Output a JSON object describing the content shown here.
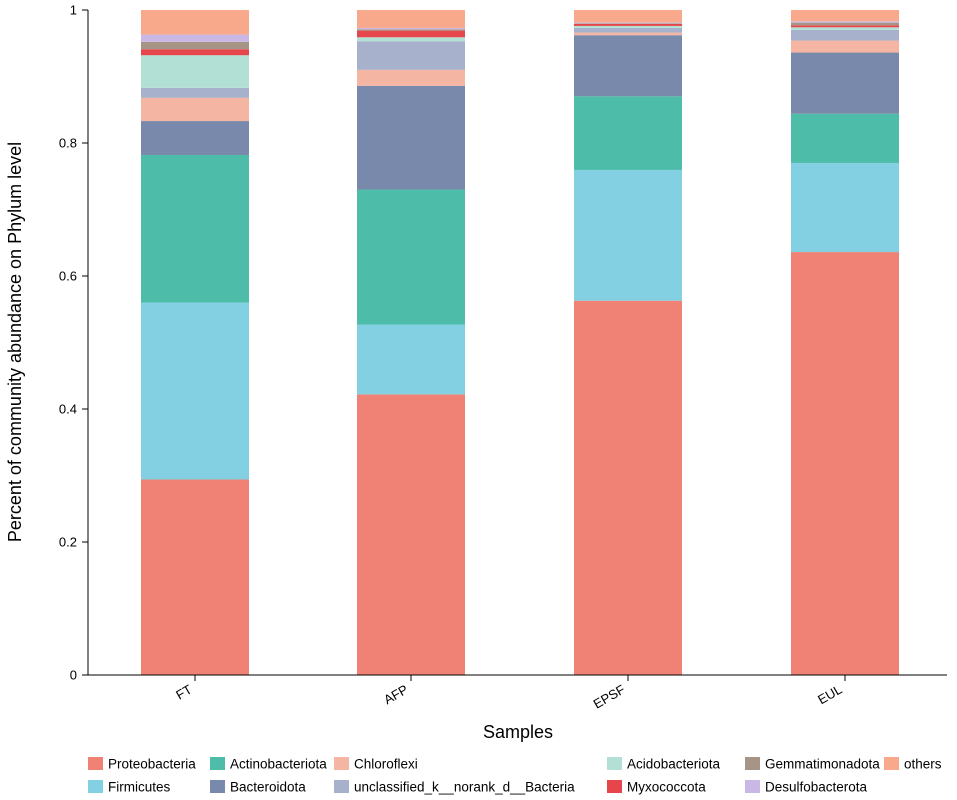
{
  "chart_data": {
    "type": "bar",
    "stacked": true,
    "title": "",
    "xlabel": "Samples",
    "ylabel": "Percent of community abundance on Phylum level",
    "ylim": [
      0,
      1
    ],
    "yticks": [
      0,
      0.2,
      0.4,
      0.6,
      0.8,
      1
    ],
    "ytick_labels": [
      "0",
      "0.2",
      "0.4",
      "0.6",
      "0.8",
      "1"
    ],
    "categories": [
      "FT",
      "AFP",
      "EPSF",
      "EUL"
    ],
    "series": [
      {
        "name": "Proteobacteria",
        "color": "#ef8275",
        "values": [
          0.294,
          0.422,
          0.564,
          0.636
        ]
      },
      {
        "name": "Firmicutes",
        "color": "#83d0e3",
        "values": [
          0.266,
          0.105,
          0.197,
          0.134
        ]
      },
      {
        "name": "Actinobacteriota",
        "color": "#4dbca8",
        "values": [
          0.222,
          0.203,
          0.111,
          0.074
        ]
      },
      {
        "name": "Bacteroidota",
        "color": "#7989ab",
        "values": [
          0.051,
          0.156,
          0.092,
          0.092
        ]
      },
      {
        "name": "Chloroflexi",
        "color": "#f5b5a3",
        "values": [
          0.035,
          0.024,
          0.004,
          0.018
        ]
      },
      {
        "name": "unclassified_k__norank_d__Bacteria",
        "color": "#a7b1cc",
        "values": [
          0.015,
          0.043,
          0.007,
          0.016
        ]
      },
      {
        "name": "Acidobacteriota",
        "color": "#b2e0d4",
        "values": [
          0.049,
          0.006,
          0.003,
          0.004
        ]
      },
      {
        "name": "Myxococcota",
        "color": "#e6454b",
        "values": [
          0.009,
          0.01,
          0.003,
          0.003
        ]
      },
      {
        "name": "Gemmatimonadota",
        "color": "#a69487",
        "values": [
          0.011,
          0.002,
          0.001,
          0.004
        ]
      },
      {
        "name": "Desulfobacterota",
        "color": "#c9b8e5",
        "values": [
          0.011,
          0.002,
          0.001,
          0.002
        ]
      },
      {
        "name": "others",
        "color": "#f9a98b",
        "values": [
          0.037,
          0.027,
          0.019,
          0.017
        ]
      }
    ],
    "legend": {
      "placement": "bottom",
      "order": [
        "Proteobacteria",
        "Actinobacteriota",
        "Chloroflexi",
        "Acidobacteriota",
        "Gemmatimonadota",
        "others",
        "Firmicutes",
        "Bacteroidota",
        "unclassified_k__norank_d__Bacteria",
        "Myxococcota",
        "Desulfobacterota"
      ]
    }
  }
}
